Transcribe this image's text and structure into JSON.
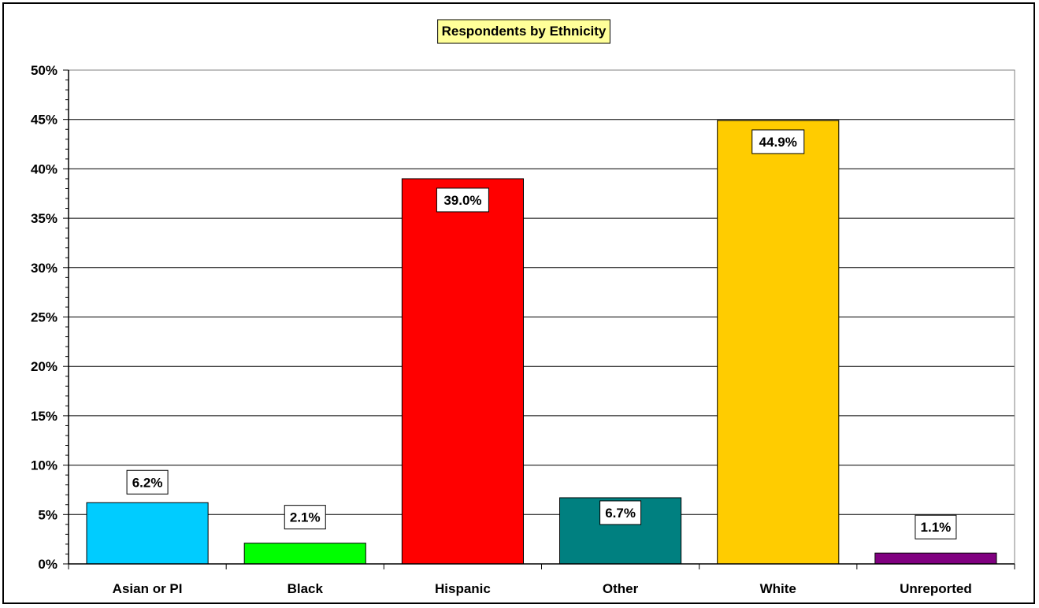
{
  "chart_data": {
    "type": "bar",
    "title": "Respondents by Ethnicity",
    "categories": [
      "Asian or PI",
      "Black",
      "Hispanic",
      "Other",
      "White",
      "Unreported"
    ],
    "values": [
      6.2,
      2.1,
      39.0,
      6.7,
      44.9,
      1.1
    ],
    "data_labels": [
      "6.2%",
      "2.1%",
      "39.0%",
      "6.7%",
      "44.9%",
      "1.1%"
    ],
    "colors": [
      "#00CCFF",
      "#00FF00",
      "#FF0000",
      "#008080",
      "#FFCC00",
      "#800080"
    ],
    "ylim": [
      0,
      50
    ],
    "yticks": [
      0,
      5,
      10,
      15,
      20,
      25,
      30,
      35,
      40,
      45,
      50
    ],
    "ytick_labels": [
      "0%",
      "5%",
      "10%",
      "15%",
      "20%",
      "25%",
      "30%",
      "35%",
      "40%",
      "45%",
      "50%"
    ],
    "xlabel": "",
    "ylabel": "",
    "grid": true,
    "legend": false,
    "title_background": "#FFFF99"
  }
}
